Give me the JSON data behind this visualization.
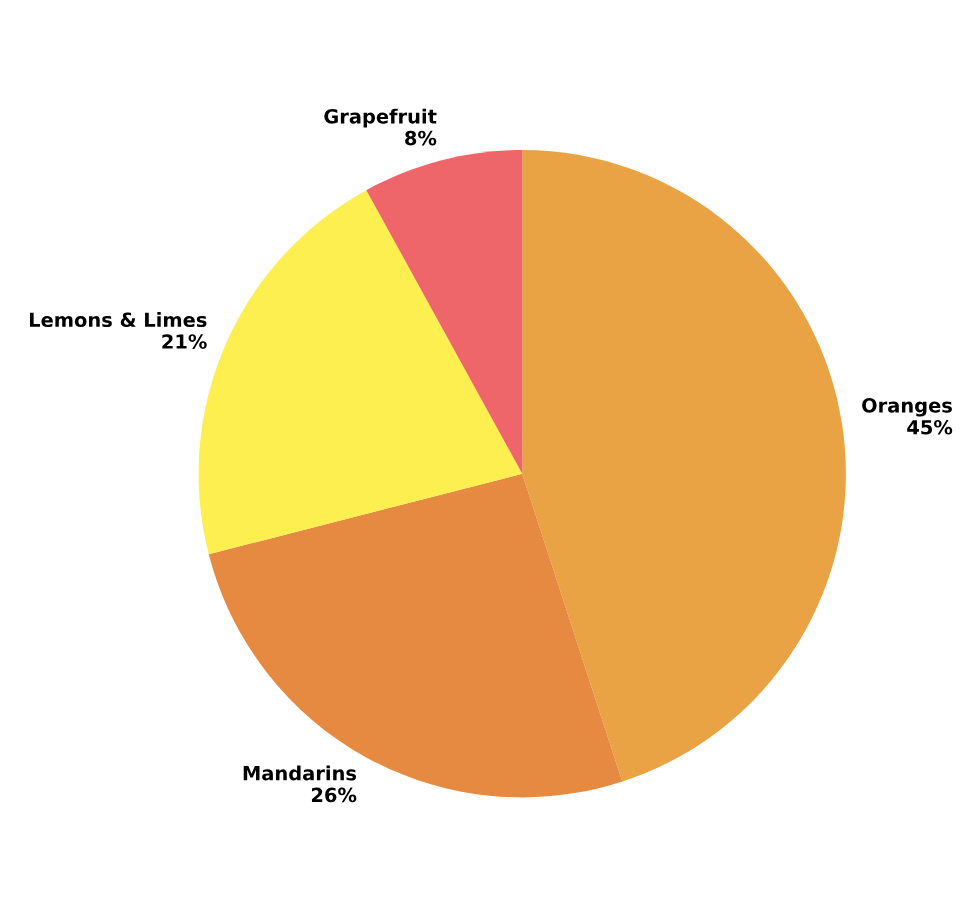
{
  "chart_data": {
    "type": "pie",
    "categories": [
      "Oranges",
      "Mandarins",
      "Lemons & Limes",
      "Grapefruit"
    ],
    "values": [
      45,
      26,
      21,
      8
    ],
    "colors": [
      "#e9a345",
      "#e68a42",
      "#fcef4f",
      "#ee6669"
    ],
    "value_labels": [
      "45%",
      "26%",
      "21%",
      "8%"
    ]
  }
}
